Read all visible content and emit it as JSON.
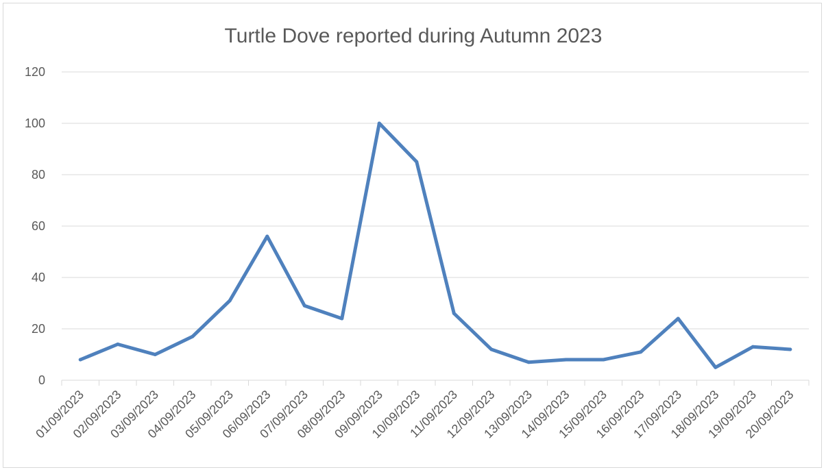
{
  "chart_data": {
    "type": "line",
    "title": "Turtle Dove reported during Autumn 2023",
    "xlabel": "",
    "ylabel": "",
    "ylim": [
      0,
      120
    ],
    "yticks": [
      0,
      20,
      40,
      60,
      80,
      100,
      120
    ],
    "grid": true,
    "legend": "none",
    "categories": [
      "01/09/2023",
      "02/09/2023",
      "03/09/2023",
      "04/09/2023",
      "05/09/2023",
      "06/09/2023",
      "07/09/2023",
      "08/09/2023",
      "09/09/2023",
      "10/09/2023",
      "11/09/2023",
      "12/09/2023",
      "13/09/2023",
      "14/09/2023",
      "15/09/2023",
      "16/09/2023",
      "17/09/2023",
      "18/09/2023",
      "19/09/2023",
      "20/09/2023"
    ],
    "series": [
      {
        "values": [
          8,
          14,
          10,
          17,
          31,
          56,
          29,
          24,
          100,
          85,
          26,
          12,
          7,
          8,
          8,
          11,
          24,
          5,
          13,
          12
        ],
        "color": "#4f81bd"
      }
    ]
  }
}
